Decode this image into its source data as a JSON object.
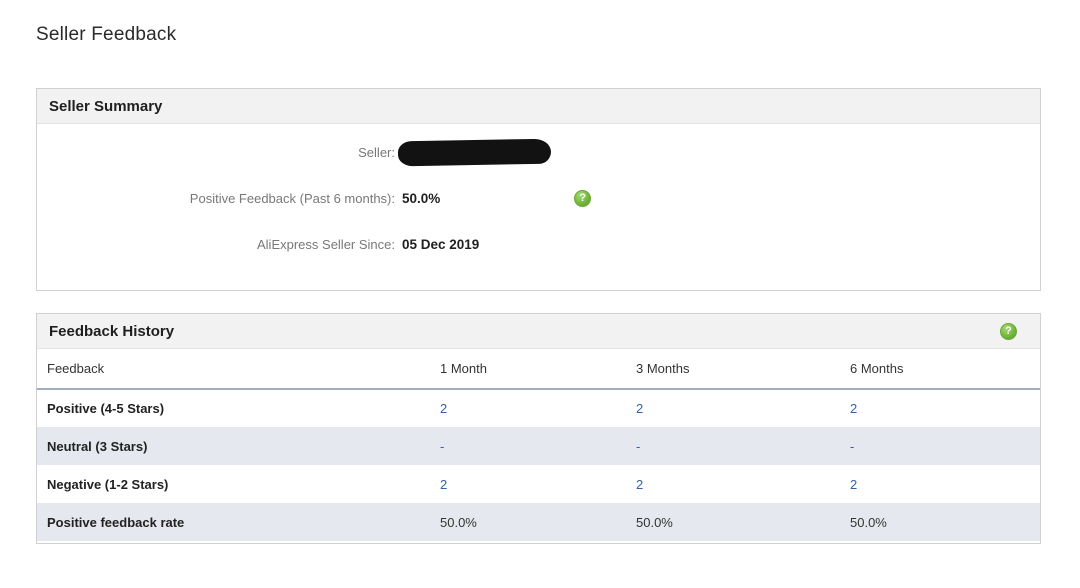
{
  "page": {
    "title": "Seller Feedback"
  },
  "seller_summary": {
    "title": "Seller Summary",
    "rows": [
      {
        "label": "Seller:",
        "value": "",
        "redacted": true
      },
      {
        "label": "Positive Feedback (Past 6 months):",
        "value": "50.0%",
        "has_help": true
      },
      {
        "label": "AliExpress Seller Since:",
        "value": "05 Dec 2019"
      }
    ]
  },
  "feedback_history": {
    "title": "Feedback History",
    "columns": [
      "Feedback",
      "1 Month",
      "3 Months",
      "6 Months"
    ],
    "rows": [
      {
        "label": "Positive (4-5 Stars)",
        "values": [
          "2",
          "2",
          "2"
        ],
        "clickable": true
      },
      {
        "label": "Neutral (3 Stars)",
        "values": [
          "-",
          "-",
          "-"
        ],
        "clickable": true
      },
      {
        "label": "Negative (1-2 Stars)",
        "values": [
          "2",
          "2",
          "2"
        ],
        "clickable": true
      },
      {
        "label": "Positive feedback rate",
        "values": [
          "50.0%",
          "50.0%",
          "50.0%"
        ],
        "clickable": false
      }
    ]
  },
  "icons": {
    "help_glyph": "?"
  },
  "colors": {
    "link_blue": "#2f62ad",
    "help_green": "#74b83e",
    "row_alt_bg": "#e5e8ee",
    "panel_header_bg": "#f2f2f2",
    "divider_slate": "#a3adc0"
  }
}
